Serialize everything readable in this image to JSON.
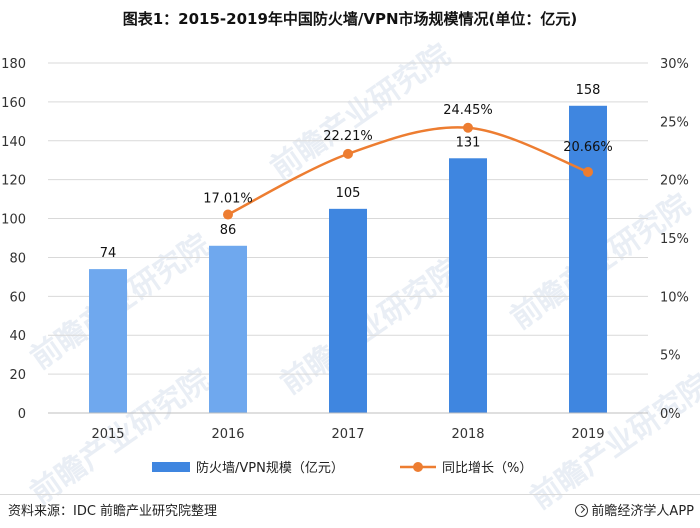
{
  "title": "图表1：2015-2019年中国防火墙/VPN市场规模情况(单位：亿元)",
  "source": "资料来源：IDC 前瞻产业研究院整理",
  "brand": "前瞻经济学人APP",
  "watermark": "前瞻产业研究院",
  "chart_data": {
    "type": "bar",
    "categories": [
      "2015",
      "2016",
      "2017",
      "2018",
      "2019"
    ],
    "series": [
      {
        "name": "防火墙/VPN规模（亿元）",
        "type": "bar",
        "axis": "left",
        "values": [
          74,
          86,
          105,
          131,
          158
        ],
        "labels": [
          "74",
          "86",
          "105",
          "131",
          "158"
        ]
      },
      {
        "name": "同比增长（%）",
        "type": "line",
        "axis": "right",
        "values": [
          null,
          17.01,
          22.21,
          24.45,
          20.66
        ],
        "labels": [
          "",
          "17.01%",
          "22.21%",
          "24.45%",
          "20.66%"
        ]
      }
    ],
    "y_left": {
      "min": 0,
      "max": 180,
      "step": 20,
      "ticks": [
        "0",
        "20",
        "40",
        "60",
        "80",
        "100",
        "120",
        "140",
        "160",
        "180"
      ]
    },
    "y_right": {
      "min": 0,
      "max": 30,
      "step": 5,
      "ticks": [
        "0%",
        "5%",
        "10%",
        "15%",
        "20%",
        "25%",
        "30%"
      ]
    },
    "grid": true,
    "legend_position": "bottom",
    "colors": {
      "bar_light": "#6fa8ee",
      "bar_dark": "#3f86e0",
      "line": "#ed7d31",
      "grid": "#d9d9d9"
    }
  }
}
